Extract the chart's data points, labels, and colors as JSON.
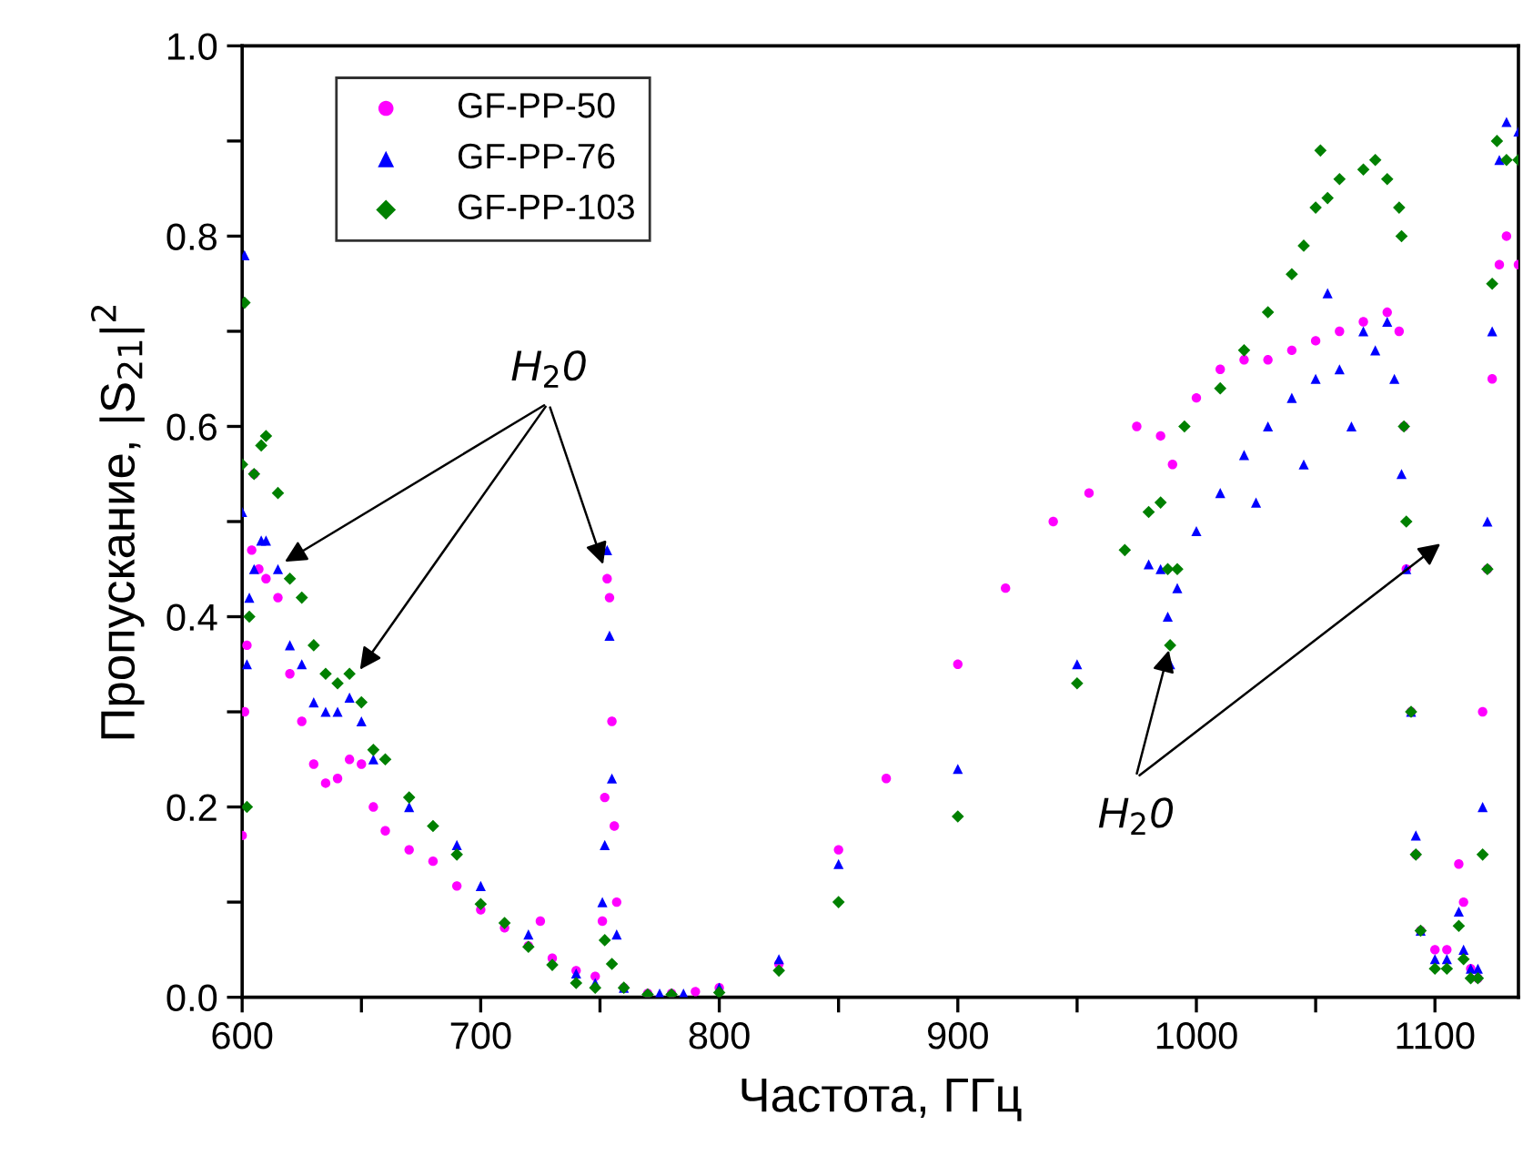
{
  "chart_data": {
    "type": "scatter",
    "xlabel": "Частота, ГГц",
    "ylabel": "Пропускание, |S$_{21}$|$^{2}$",
    "xlim": [
      600,
      1135
    ],
    "ylim": [
      0,
      1.0
    ],
    "xticks": [
      600,
      {
        "value": 650,
        "label": null
      },
      700,
      {
        "value": 750,
        "label": null
      },
      800,
      {
        "value": 850,
        "label": null
      },
      900,
      {
        "value": 950,
        "label": null
      },
      1000,
      {
        "value": 1050,
        "label": null
      },
      1100
    ],
    "yticks": [
      {
        "value": 0,
        "label": "0.0"
      },
      {
        "value": 0.1,
        "label": null
      },
      0.2,
      {
        "value": 0.3,
        "label": null
      },
      0.4,
      {
        "value": 0.5,
        "label": null
      },
      0.6,
      {
        "value": 0.7,
        "label": null
      },
      0.8,
      {
        "value": 0.9,
        "label": null
      },
      {
        "value": 1.0,
        "label": "1.0"
      }
    ],
    "grid": false,
    "legend": "top left",
    "annotations": [
      {
        "text": "H$_{2}$0",
        "x": 752,
        "y": 0.45
      },
      {
        "text": "H$_{2}$0",
        "x": 989,
        "y": 0.37
      }
    ],
    "series": [
      {
        "name": "GF-PP-50",
        "color": "#ff00ff",
        "marker": "circle",
        "x": [
          600,
          601,
          602,
          604,
          605,
          607,
          610,
          615,
          620,
          625,
          630,
          635,
          640,
          645,
          650,
          655,
          660,
          670,
          680,
          690,
          700,
          710,
          720,
          725,
          730,
          740,
          748,
          751,
          752,
          753,
          754,
          755,
          756,
          757,
          760,
          770,
          780,
          790,
          800,
          825,
          850,
          870,
          900,
          920,
          940,
          955,
          975,
          985,
          990,
          1000,
          1010,
          1020,
          1030,
          1040,
          1050,
          1060,
          1070,
          1080,
          1085,
          1087,
          1088,
          1090,
          1092,
          1094,
          1100,
          1105,
          1110,
          1112,
          1115,
          1118,
          1120,
          1122,
          1124,
          1127,
          1130,
          1135
        ],
        "values": [
          0.17,
          0.3,
          0.37,
          0.47,
          0.55,
          0.45,
          0.44,
          0.42,
          0.34,
          0.29,
          0.245,
          0.225,
          0.23,
          0.25,
          0.245,
          0.2,
          0.175,
          0.155,
          0.143,
          0.117,
          0.092,
          0.073,
          0.054,
          0.08,
          0.041,
          0.028,
          0.022,
          0.08,
          0.21,
          0.44,
          0.42,
          0.29,
          0.18,
          0.1,
          0.01,
          0.004,
          0.004,
          0.006,
          0.01,
          0.035,
          0.155,
          0.23,
          0.35,
          0.43,
          0.5,
          0.53,
          0.6,
          0.59,
          0.56,
          0.63,
          0.66,
          0.67,
          0.67,
          0.68,
          0.69,
          0.7,
          0.71,
          0.72,
          0.7,
          0.6,
          0.45,
          0.3,
          0.15,
          0.07,
          0.05,
          0.05,
          0.14,
          0.1,
          0.03,
          0.02,
          0.3,
          0.45,
          0.65,
          0.77,
          0.8,
          0.77
        ]
      },
      {
        "name": "GF-PP-76",
        "color": "#0000ff",
        "marker": "triangle",
        "x": [
          600,
          601,
          602,
          603,
          605,
          608,
          610,
          615,
          620,
          625,
          630,
          635,
          640,
          645,
          650,
          655,
          670,
          690,
          700,
          720,
          740,
          748,
          751,
          752,
          753,
          754,
          755,
          757,
          760,
          775,
          785,
          800,
          825,
          850,
          900,
          950,
          980,
          985,
          988,
          989,
          992,
          1000,
          1010,
          1020,
          1025,
          1030,
          1040,
          1045,
          1050,
          1055,
          1060,
          1065,
          1070,
          1075,
          1080,
          1083,
          1086,
          1088,
          1090,
          1092,
          1094,
          1100,
          1105,
          1110,
          1112,
          1115,
          1118,
          1120,
          1122,
          1124,
          1127,
          1130,
          1135
        ],
        "values": [
          0.51,
          0.78,
          0.35,
          0.42,
          0.45,
          0.48,
          0.48,
          0.45,
          0.37,
          0.35,
          0.31,
          0.3,
          0.3,
          0.315,
          0.29,
          0.25,
          0.2,
          0.16,
          0.117,
          0.066,
          0.025,
          0.015,
          0.1,
          0.16,
          0.47,
          0.38,
          0.23,
          0.066,
          0.01,
          0.004,
          0.004,
          0.01,
          0.04,
          0.14,
          0.24,
          0.35,
          0.455,
          0.45,
          0.4,
          0.35,
          0.43,
          0.49,
          0.53,
          0.57,
          0.52,
          0.6,
          0.63,
          0.56,
          0.65,
          0.74,
          0.66,
          0.6,
          0.7,
          0.68,
          0.71,
          0.65,
          0.55,
          0.45,
          0.3,
          0.17,
          0.07,
          0.04,
          0.04,
          0.09,
          0.05,
          0.03,
          0.03,
          0.2,
          0.5,
          0.7,
          0.88,
          0.92,
          0.91
        ]
      },
      {
        "name": "GF-PP-103",
        "color": "#008000",
        "marker": "diamond",
        "x": [
          600,
          601,
          602,
          603,
          605,
          608,
          610,
          615,
          620,
          625,
          630,
          635,
          640,
          645,
          650,
          655,
          660,
          670,
          680,
          690,
          700,
          710,
          720,
          730,
          740,
          748,
          752,
          755,
          760,
          770,
          780,
          800,
          825,
          850,
          900,
          950,
          970,
          980,
          985,
          988,
          989,
          992,
          995,
          1010,
          1020,
          1030,
          1040,
          1045,
          1050,
          1052,
          1055,
          1060,
          1070,
          1075,
          1080,
          1085,
          1086,
          1087,
          1088,
          1090,
          1092,
          1094,
          1100,
          1105,
          1110,
          1112,
          1115,
          1118,
          1120,
          1122,
          1124,
          1126,
          1130,
          1135
        ],
        "values": [
          0.56,
          0.73,
          0.2,
          0.4,
          0.55,
          0.58,
          0.59,
          0.53,
          0.44,
          0.42,
          0.37,
          0.34,
          0.33,
          0.34,
          0.31,
          0.26,
          0.25,
          0.21,
          0.18,
          0.15,
          0.098,
          0.078,
          0.053,
          0.034,
          0.015,
          0.01,
          0.06,
          0.035,
          0.01,
          0.003,
          0.003,
          0.005,
          0.028,
          0.1,
          0.19,
          0.33,
          0.47,
          0.51,
          0.52,
          0.45,
          0.37,
          0.45,
          0.6,
          0.64,
          0.68,
          0.72,
          0.76,
          0.79,
          0.83,
          0.89,
          0.84,
          0.86,
          0.87,
          0.88,
          0.86,
          0.83,
          0.8,
          0.6,
          0.5,
          0.3,
          0.15,
          0.07,
          0.03,
          0.03,
          0.075,
          0.04,
          0.02,
          0.02,
          0.15,
          0.45,
          0.75,
          0.9,
          0.88,
          0.88
        ]
      }
    ]
  }
}
